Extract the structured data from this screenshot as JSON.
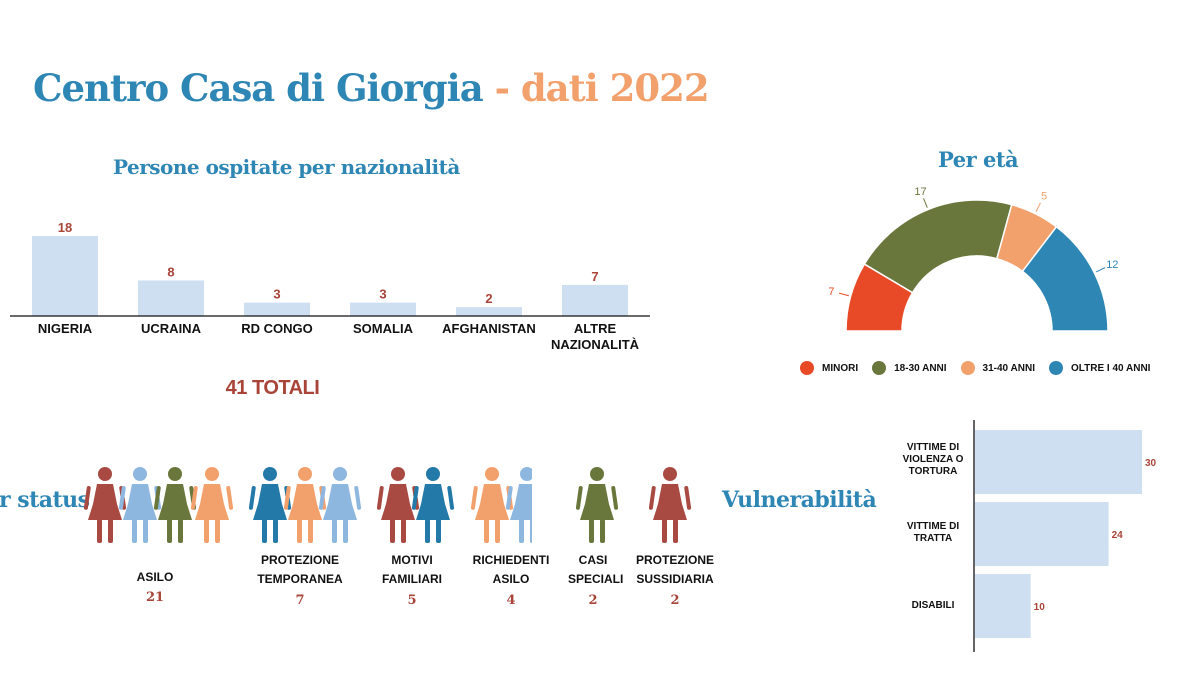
{
  "title": {
    "part1": "Centro Casa di Giorgia",
    "dash": " - ",
    "part2": "dati 2022"
  },
  "colors": {
    "blue": "#2e86b5",
    "orange": "#f2a06c",
    "red": "#a84438",
    "bar": "#cfdff2",
    "green": "#69773c"
  },
  "nationality": {
    "subtitle": "Persone ospitate per nazionalità",
    "total_label": "41 TOTALI"
  },
  "status": {
    "subtitle": "Per status",
    "groups": [
      {
        "label": "ASILO",
        "count": "21"
      },
      {
        "label": "PROTEZIONE TEMPORANEA",
        "count": "7"
      },
      {
        "label": "MOTIVI FAMILIARI",
        "count": "5"
      },
      {
        "label": "RICHIEDENTI ASILO",
        "count": "4"
      },
      {
        "label": "CASI SPECIALI",
        "count": "2"
      },
      {
        "label": "PROTEZIONE SUSSIDIARIA",
        "count": "2"
      }
    ]
  },
  "age": {
    "subtitle": "Per età"
  },
  "vulnerability": {
    "subtitle": "Vulnerabilità"
  },
  "chart_data": [
    {
      "type": "bar",
      "title": "Persone ospitate per nazionalità",
      "categories": [
        "NIGERIA",
        "UCRAINA",
        "RD CONGO",
        "SOMALIA",
        "AFGHANISTAN",
        "ALTRE NAZIONALITÀ"
      ],
      "values": [
        18,
        8,
        3,
        3,
        2,
        7
      ],
      "ylim": [
        0,
        18
      ],
      "grid": false
    },
    {
      "type": "pie",
      "title": "Per età",
      "categories": [
        "MINORI",
        "18-30 ANNI",
        "31-40 ANNI",
        "OLTRE I 40 ANNI"
      ],
      "values": [
        7,
        17,
        5,
        12
      ],
      "colors": [
        "#e84a27",
        "#69773c",
        "#f2a06c",
        "#2e86b5"
      ],
      "shape": "half-donut",
      "legend": "bottom"
    },
    {
      "type": "bar",
      "orientation": "horizontal",
      "title": "Vulnerabilità",
      "categories": [
        "VITTIME DI VIOLENZA O TORTURA",
        "VITTIME DI TRATTA",
        "DISABILI"
      ],
      "values": [
        30,
        24,
        10
      ],
      "xlim": [
        0,
        30
      ],
      "grid": false
    }
  ]
}
